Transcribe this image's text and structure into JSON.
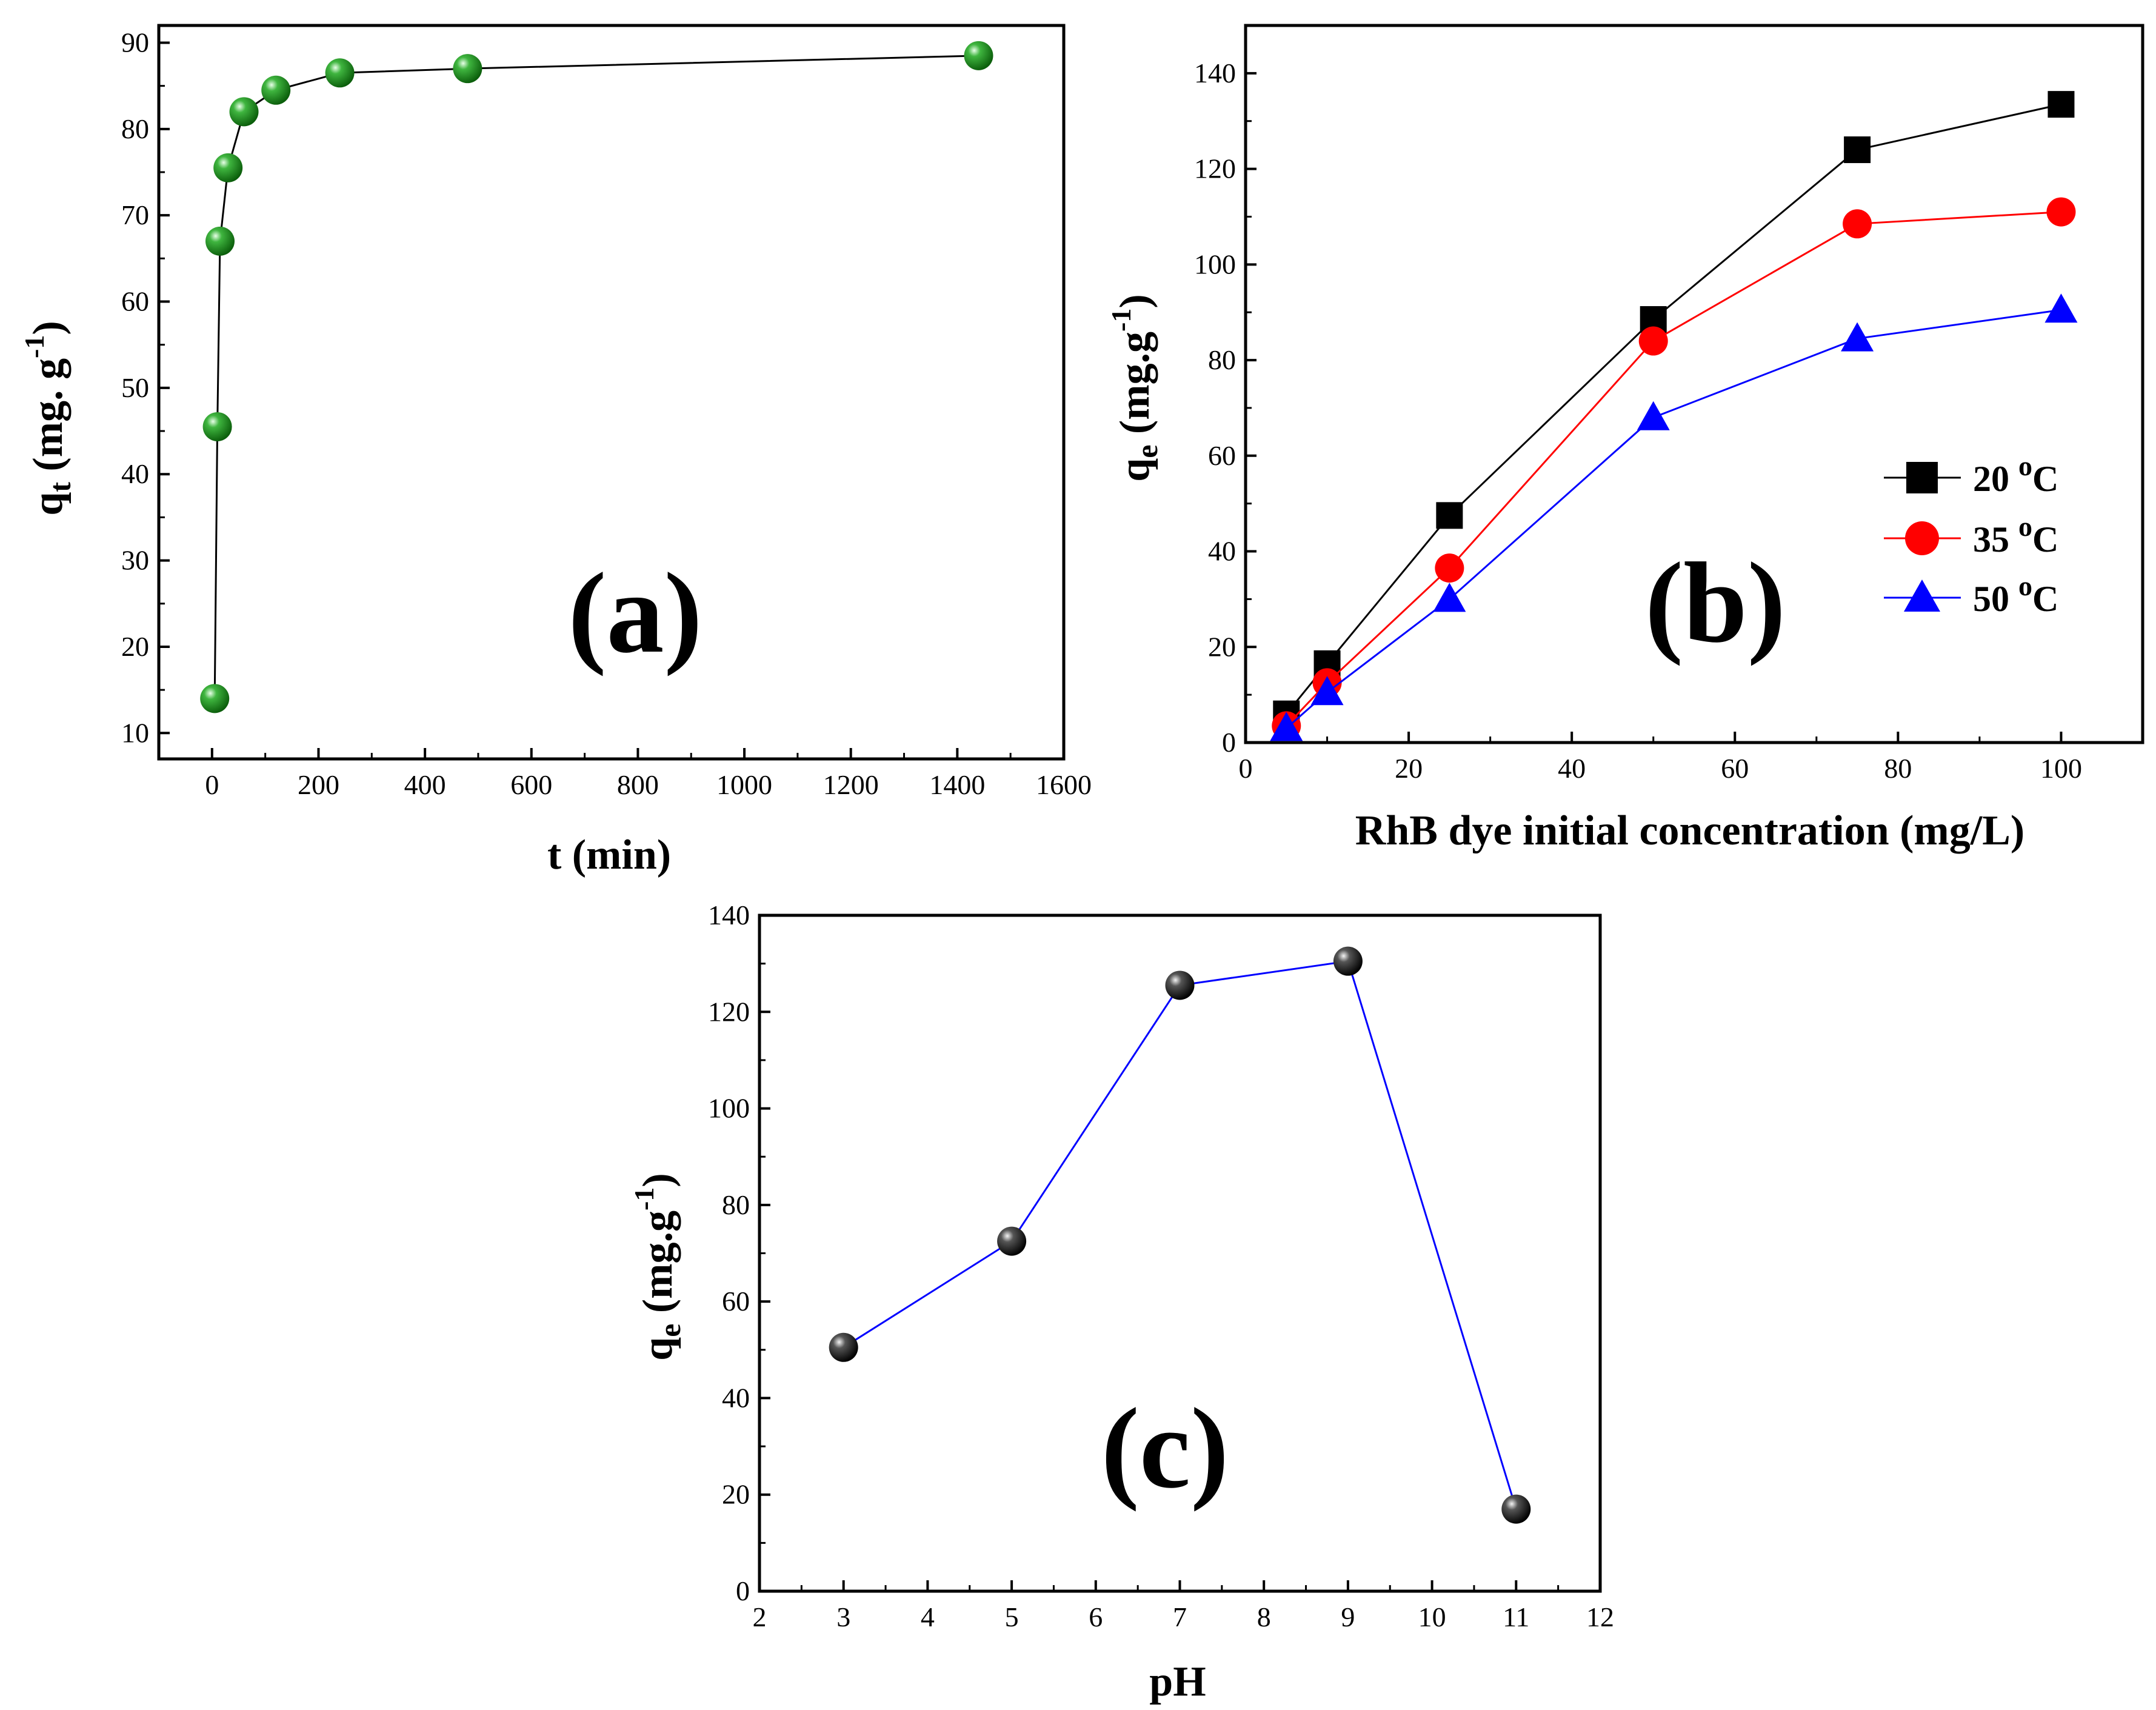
{
  "chart_data": [
    {
      "id": "a",
      "type": "scatter",
      "panel_label": "(a)",
      "xlabel": "t (min)",
      "ylabel": {
        "base": "q",
        "sub": "t",
        "unit": " (mg. g",
        "sup": "-1",
        "close": ")"
      },
      "xlim": [
        -100,
        1600
      ],
      "ylim": [
        7,
        92
      ],
      "xticks": [
        0,
        200,
        400,
        600,
        800,
        1000,
        1200,
        1400,
        1600
      ],
      "yticks": [
        10,
        20,
        30,
        40,
        50,
        60,
        70,
        80,
        90
      ],
      "series": [
        {
          "name": "qt",
          "color": "#1f8f1f",
          "line_color": "#000000",
          "marker": "ball",
          "x": [
            5,
            10,
            15,
            30,
            60,
            120,
            240,
            480,
            1440
          ],
          "y": [
            14,
            45.5,
            67,
            75.5,
            82,
            84.5,
            86.5,
            87,
            88.5
          ]
        }
      ]
    },
    {
      "id": "b",
      "type": "line",
      "panel_label": "(b)",
      "xlabel": "RhB dye initial concentration (mg/L)",
      "ylabel": {
        "base": "q",
        "sub": "e",
        "unit": " (mg.g",
        "sup": "-1",
        "close": ")"
      },
      "xlim": [
        0,
        110
      ],
      "ylim": [
        0,
        150
      ],
      "xticks": [
        0,
        20,
        40,
        60,
        80,
        100
      ],
      "yticks": [
        0,
        20,
        40,
        60,
        80,
        100,
        120,
        140
      ],
      "legend_position": "right",
      "series": [
        {
          "name": "20 ",
          "sup": "o",
          "unit": "C",
          "color": "#000000",
          "marker": "square",
          "x": [
            5,
            10,
            25,
            50,
            75,
            100
          ],
          "y": [
            6,
            16.5,
            47.5,
            88.5,
            124,
            133.5
          ]
        },
        {
          "name": "35 ",
          "sup": "o",
          "unit": "C",
          "color": "#ff0000",
          "marker": "circle",
          "x": [
            5,
            10,
            25,
            50,
            75,
            100
          ],
          "y": [
            3.5,
            12.5,
            36.5,
            84,
            108.5,
            111
          ]
        },
        {
          "name": "50 ",
          "sup": "o",
          "unit": "C",
          "color": "#0000ff",
          "marker": "triangle",
          "x": [
            5,
            10,
            25,
            50,
            75,
            100
          ],
          "y": [
            3,
            10.5,
            30,
            68,
            84.5,
            90.5
          ]
        }
      ]
    },
    {
      "id": "c",
      "type": "scatter",
      "panel_label": "(c)",
      "xlabel": "pH",
      "ylabel": {
        "base": "q",
        "sub": "e",
        "unit": " (mg.g",
        "sup": "-1",
        "close": ")"
      },
      "xlim": [
        2,
        12
      ],
      "ylim": [
        0,
        140
      ],
      "xticks": [
        2,
        3,
        4,
        5,
        6,
        7,
        8,
        9,
        10,
        11,
        12
      ],
      "yticks": [
        0,
        20,
        40,
        60,
        80,
        100,
        120,
        140
      ],
      "series": [
        {
          "name": "qe",
          "color": "#111111",
          "line_color": "#0000ff",
          "marker": "ball",
          "x": [
            3,
            5,
            7,
            9,
            11
          ],
          "y": [
            50.5,
            72.5,
            125.5,
            130.5,
            17
          ]
        }
      ]
    }
  ]
}
